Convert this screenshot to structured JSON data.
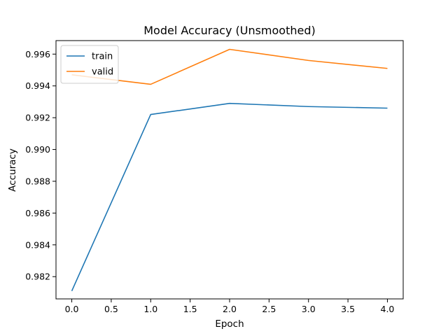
{
  "chart_data": {
    "type": "line",
    "title": "Model Accuracy (Unsmoothed)",
    "xlabel": "Epoch",
    "ylabel": "Accuracy",
    "xlim": [
      -0.2,
      4.2
    ],
    "ylim": [
      0.9806,
      0.99685
    ],
    "xticks": [
      0.0,
      0.5,
      1.0,
      1.5,
      2.0,
      2.5,
      3.0,
      3.5,
      4.0
    ],
    "xtick_labels": [
      "0.0",
      "0.5",
      "1.0",
      "1.5",
      "2.0",
      "2.5",
      "3.0",
      "3.5",
      "4.0"
    ],
    "yticks": [
      0.982,
      0.984,
      0.986,
      0.988,
      0.99,
      0.992,
      0.994,
      0.996
    ],
    "ytick_labels": [
      "0.982",
      "0.984",
      "0.986",
      "0.988",
      "0.990",
      "0.992",
      "0.994",
      "0.996"
    ],
    "grid": false,
    "legend_position": "top-left",
    "x": [
      0,
      1,
      2,
      3,
      4
    ],
    "series": [
      {
        "name": "train",
        "color": "#1f77b4",
        "values": [
          0.9811,
          0.9922,
          0.9929,
          0.9927,
          0.9926
        ]
      },
      {
        "name": "valid",
        "color": "#ff7f0e",
        "values": [
          0.9947,
          0.9941,
          0.9963,
          0.9956,
          0.9951
        ]
      }
    ]
  }
}
